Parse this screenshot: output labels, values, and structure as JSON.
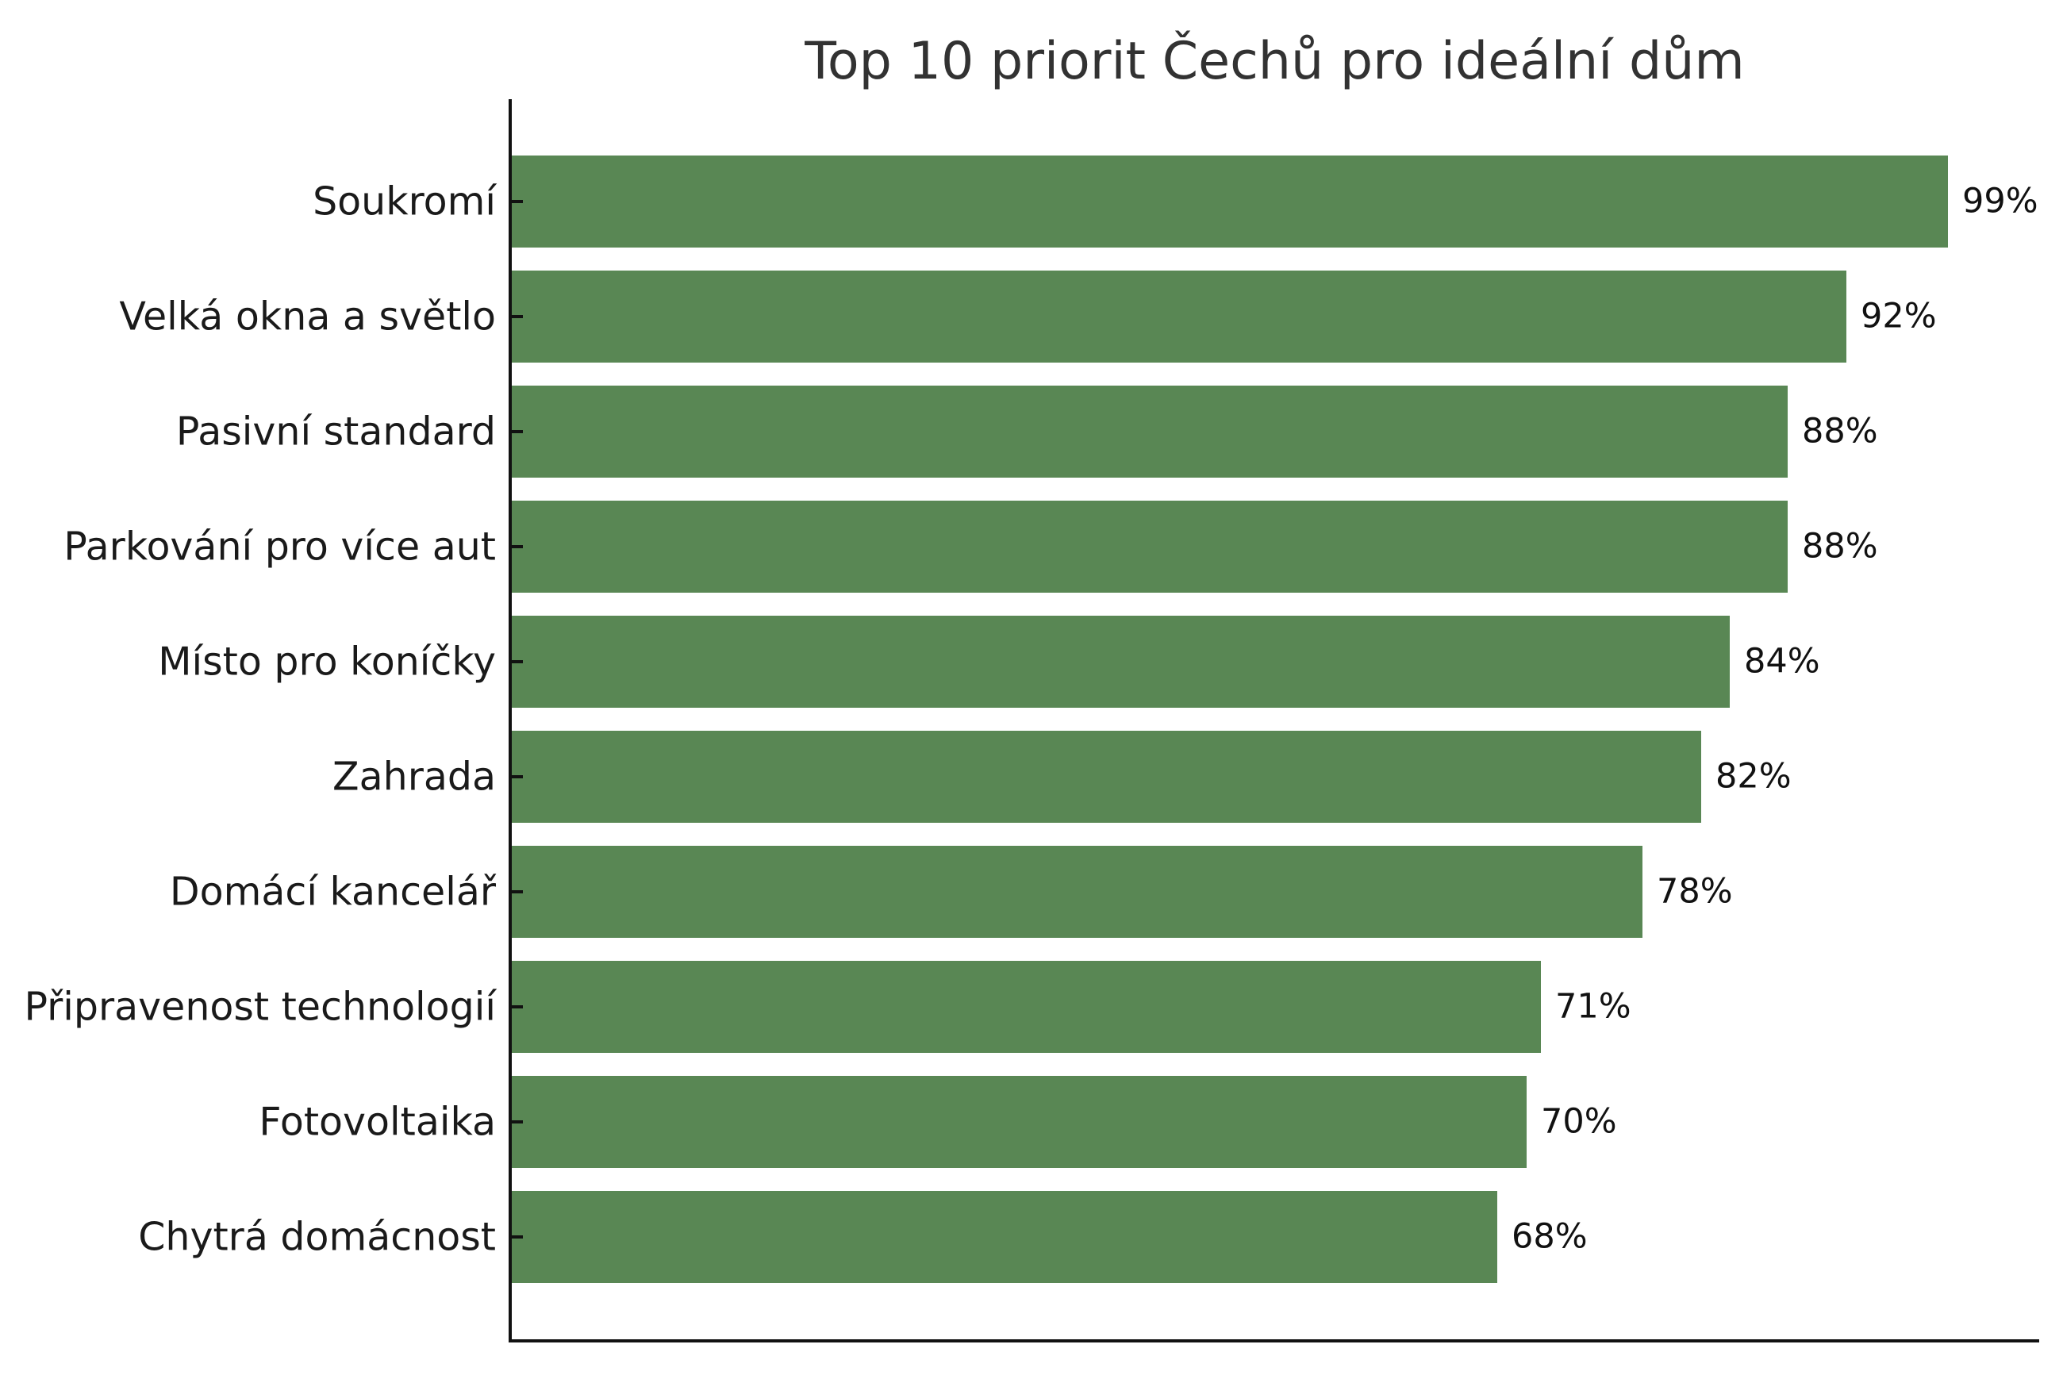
{
  "chart_data": {
    "type": "bar",
    "orientation": "horizontal",
    "title": "Top 10 priorit Čechů pro ideální dům",
    "categories": [
      "Soukromí",
      "Velká okna a světlo",
      "Pasivní standard",
      "Parkování pro více aut",
      "Místo pro koníčky",
      "Zahrada",
      "Domácí kancelář",
      "Připravenost technologií",
      "Fotovoltaika",
      "Chytrá domácnost"
    ],
    "values": [
      99,
      92,
      88,
      88,
      84,
      82,
      78,
      71,
      70,
      68
    ],
    "value_labels": [
      "99%",
      "92%",
      "88%",
      "88%",
      "84%",
      "82%",
      "78%",
      "71%",
      "70%",
      "68%"
    ],
    "xlabel": "",
    "ylabel": "",
    "xlim": [
      0,
      105.3
    ],
    "grid": false,
    "legend": "none",
    "colors": {
      "bar": "#598754",
      "label_text": "#1a1a1a",
      "value_text": "#111111",
      "title_text": "#323232",
      "axis": "#111111"
    }
  }
}
